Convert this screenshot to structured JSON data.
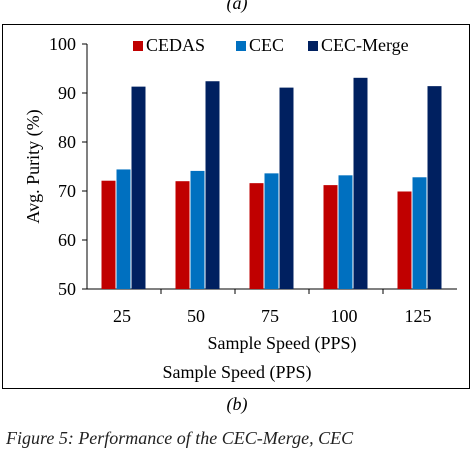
{
  "captions": {
    "top": "(a)",
    "bottom": "(b)",
    "figure": "Figure 5: Performance of the CEC-Merge, CEC"
  },
  "outer_panel": {
    "xlabel": "Sample Speed (PPS)"
  },
  "chart_data": {
    "type": "bar",
    "title": "",
    "xlabel": "Sample Speed (PPS)",
    "ylabel": "Avg. Purity (%)",
    "categories": [
      "25",
      "50",
      "75",
      "100",
      "125"
    ],
    "ylim": [
      50,
      100
    ],
    "yticks": [
      50,
      60,
      70,
      80,
      90,
      100
    ],
    "grid": false,
    "legend_position": "top-right",
    "series": [
      {
        "name": "CEDAS",
        "color": "#c00000",
        "values": [
          72.1,
          72.0,
          71.6,
          71.2,
          69.9
        ]
      },
      {
        "name": "CEC",
        "color": "#0070c0",
        "values": [
          74.4,
          74.1,
          73.6,
          73.2,
          72.8
        ]
      },
      {
        "name": "CEC-Merge",
        "color": "#002060",
        "values": [
          91.3,
          92.4,
          91.1,
          93.1,
          91.4
        ]
      }
    ]
  }
}
